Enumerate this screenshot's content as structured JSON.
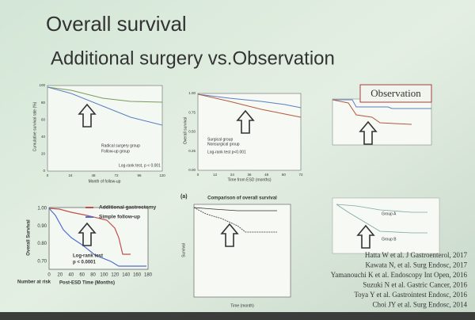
{
  "slide": {
    "title": "Overall survival",
    "subtitle": "Additional surgery vs.Observation",
    "panels": [
      {
        "ylabel": "Cumulative survival rate (%)",
        "xlabel": "Month of follow-up",
        "legend": [
          "Radical surgery group",
          "Follow-up group"
        ],
        "note": "Log-rank test, p < 0.001",
        "xticks": [
          "0",
          "24",
          "48",
          "72",
          "96",
          "120"
        ],
        "yticks": [
          "100",
          "80",
          "60",
          "40",
          "20",
          "0"
        ]
      },
      {
        "ylabel": "Overall survival",
        "xlabel": "Time from ESD (months)",
        "legend": [
          "Surgical group",
          "Nonsurgical group"
        ],
        "note": "Log-rank test p<0.001",
        "xticks": [
          "0",
          "12",
          "24",
          "36",
          "48",
          "60",
          "72"
        ],
        "yticks": [
          "1.00",
          "0.75",
          "0.50",
          "0.25",
          "0.00"
        ]
      },
      {
        "label": "Observation"
      },
      {
        "ylabel": "Overall Survival",
        "xlabel": "Post-ESD Time (Months)",
        "legend": [
          "Additional gastrectomy",
          "Simple follow-up"
        ],
        "note": [
          "Log-rank test",
          "p < 0.0001"
        ],
        "risk": "Number at risk",
        "xticks": [
          "0",
          "20",
          "40",
          "60",
          "80",
          "100",
          "120",
          "140",
          "160",
          "180"
        ],
        "yticks": [
          "1.00",
          "0.90",
          "0.80",
          "0.70"
        ]
      },
      {
        "tag": "(a)",
        "title": "Comparison of overall survival",
        "ylabel": "Survival",
        "xlabel": "Time (month)"
      },
      {
        "groups": [
          "Group A",
          "Group B"
        ]
      }
    ],
    "references": [
      "Hatta W et al. J Gastroenterol, 2017",
      "Kawata N, et al. Surg Endosc, 2017",
      "Yamanouchi K et al. Endoscopy Int Open, 2016",
      "Suzuki N et al. Gastric Cancer, 2016",
      "Toya Y et al. Gastrointest Endosc, 2016",
      "Choi JY et al. Surg Endosc, 2014"
    ]
  }
}
